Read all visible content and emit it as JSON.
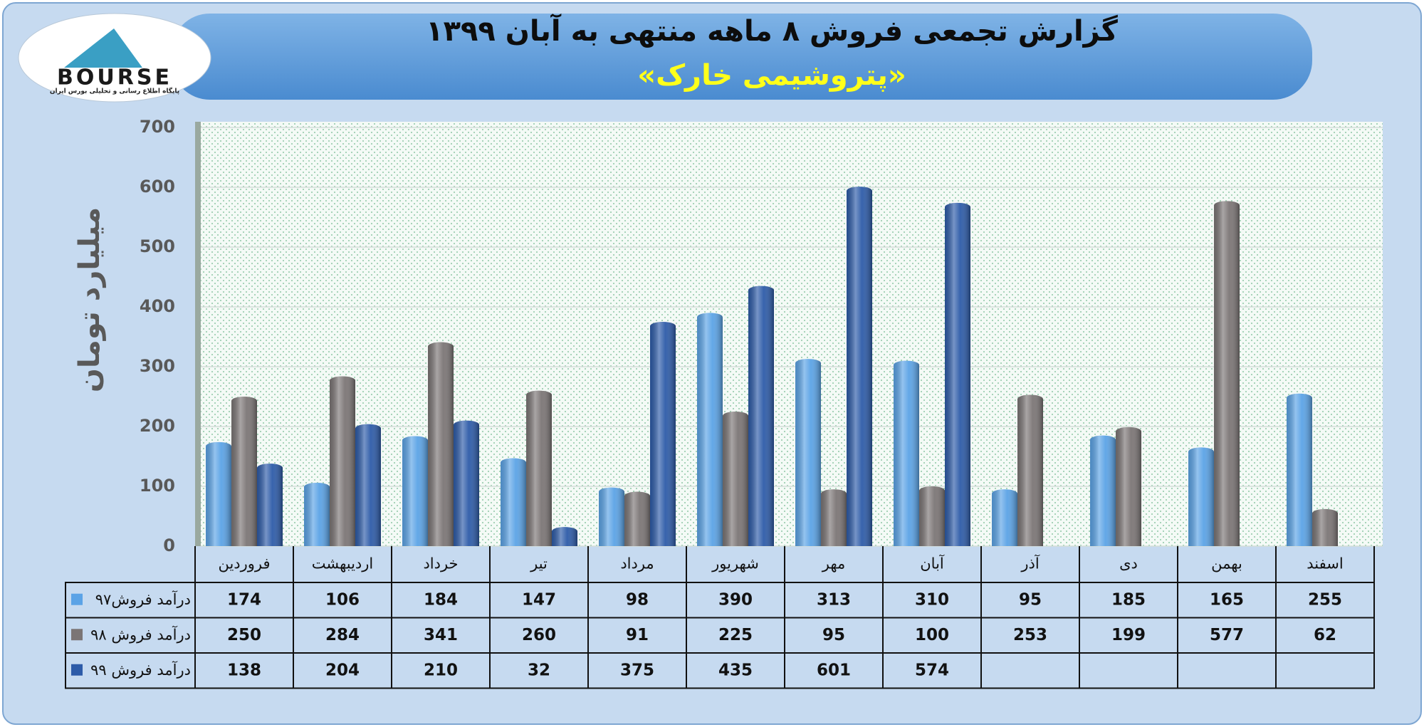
{
  "logo": {
    "text": "BOURSE",
    "tagline": "پایگاه اطلاع رسانی و تحلیلی بورس ایران"
  },
  "chart_data": {
    "type": "bar",
    "title": "گزارش تجمعی فروش ۸ ماهه منتهی به آبان ۱۳۹۹",
    "subtitle": "«پتروشیمی خارک»",
    "ylabel": "میلیارد تومان",
    "categories": [
      "فروردین",
      "اردیبهشت",
      "خرداد",
      "تیر",
      "مرداد",
      "شهریور",
      "مهر",
      "آبان",
      "آذر",
      "دی",
      "بهمن",
      "اسفند"
    ],
    "series": [
      {
        "name": "درآمد فروش۹۷",
        "color": "#5ba3e6",
        "values": [
          174,
          106,
          184,
          147,
          98,
          390,
          313,
          310,
          95,
          185,
          165,
          255
        ]
      },
      {
        "name": "درآمد فروش ۹۸",
        "color": "#7b7575",
        "values": [
          250,
          284,
          341,
          260,
          91,
          225,
          95,
          100,
          253,
          199,
          577,
          62
        ]
      },
      {
        "name": "درآمد فروش ۹۹",
        "color": "#2d5ba8",
        "values": [
          138,
          204,
          210,
          32,
          375,
          435,
          601,
          574,
          null,
          null,
          null,
          null
        ]
      }
    ],
    "ylim": [
      0,
      700
    ],
    "yticks": [
      0,
      100,
      200,
      300,
      400,
      500,
      600,
      700
    ],
    "grid": true
  }
}
